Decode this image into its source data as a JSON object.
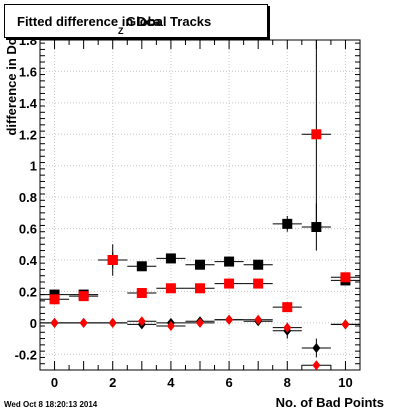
{
  "title": {
    "prefix": "Fitted difference in Dca",
    "subscript": "Z",
    "suffix": "Global Tracks"
  },
  "timestamp": "Wed Oct  8 18:20:13 2014",
  "chart_data": {
    "type": "scatter",
    "xlabel": "No. of Bad Points",
    "ylabel": "difference in Dc",
    "xlim": [
      -0.5,
      10.5
    ],
    "ylim": [
      -0.3,
      1.8
    ],
    "xticks": [
      0,
      2,
      4,
      6,
      8,
      10
    ],
    "xtick_labels": [
      "0",
      "2",
      "4",
      "6",
      "8",
      "10"
    ],
    "yticks": [
      -0.2,
      0,
      0.2,
      0.4,
      0.6,
      0.8,
      1,
      1.2,
      1.4,
      1.6,
      1.8
    ],
    "ytick_labels": [
      "-0.2",
      "0",
      "0.2",
      "0.4",
      "0.6",
      "0.8",
      "1",
      "1.2",
      "1.4",
      "1.6",
      "1.8"
    ],
    "grid": true,
    "series": [
      {
        "marker": "square",
        "color": "#000000",
        "x": [
          0,
          1,
          2,
          3,
          4,
          5,
          6,
          7,
          8,
          9,
          10
        ],
        "y": [
          0.18,
          0.18,
          0.4,
          0.36,
          0.41,
          0.37,
          0.39,
          0.37,
          0.63,
          0.61,
          0.27
        ],
        "yerr": [
          0.02,
          0.02,
          0.1,
          0.03,
          0.03,
          0.02,
          0.03,
          0.03,
          0.05,
          0.15,
          0.03
        ]
      },
      {
        "marker": "square",
        "color": "#ff0000",
        "x": [
          0,
          1,
          2,
          3,
          4,
          5,
          6,
          7,
          8,
          9,
          10
        ],
        "y": [
          0.15,
          0.17,
          0.4,
          0.19,
          0.22,
          0.22,
          0.25,
          0.25,
          0.1,
          1.2,
          0.29
        ],
        "yerr": [
          0.01,
          0.01,
          0.05,
          0.01,
          0.01,
          0.01,
          0.01,
          0.01,
          0.03,
          0.6,
          0.02
        ]
      },
      {
        "marker": "diamond",
        "color": "#000000",
        "x": [
          0,
          1,
          2,
          3,
          4,
          5,
          6,
          7,
          8,
          9,
          10
        ],
        "y": [
          0.0,
          0.0,
          0.0,
          -0.01,
          0.0,
          0.01,
          0.02,
          0.01,
          -0.05,
          -0.16,
          -0.01
        ],
        "yerr": [
          0.01,
          0.01,
          0.02,
          0.02,
          0.02,
          0.02,
          0.02,
          0.02,
          0.05,
          0.06,
          0.03
        ]
      },
      {
        "marker": "diamond",
        "color": "#ff0000",
        "x": [
          0,
          1,
          2,
          3,
          4,
          5,
          6,
          7,
          8,
          9,
          10
        ],
        "y": [
          0.0,
          0.0,
          0.0,
          0.01,
          -0.02,
          0.0,
          0.02,
          0.02,
          -0.03,
          -0.27,
          -0.01
        ],
        "yerr": [
          0.01,
          0.01,
          0.01,
          0.01,
          0.01,
          0.01,
          0.01,
          0.01,
          0.02,
          0.02,
          0.01
        ]
      }
    ]
  }
}
